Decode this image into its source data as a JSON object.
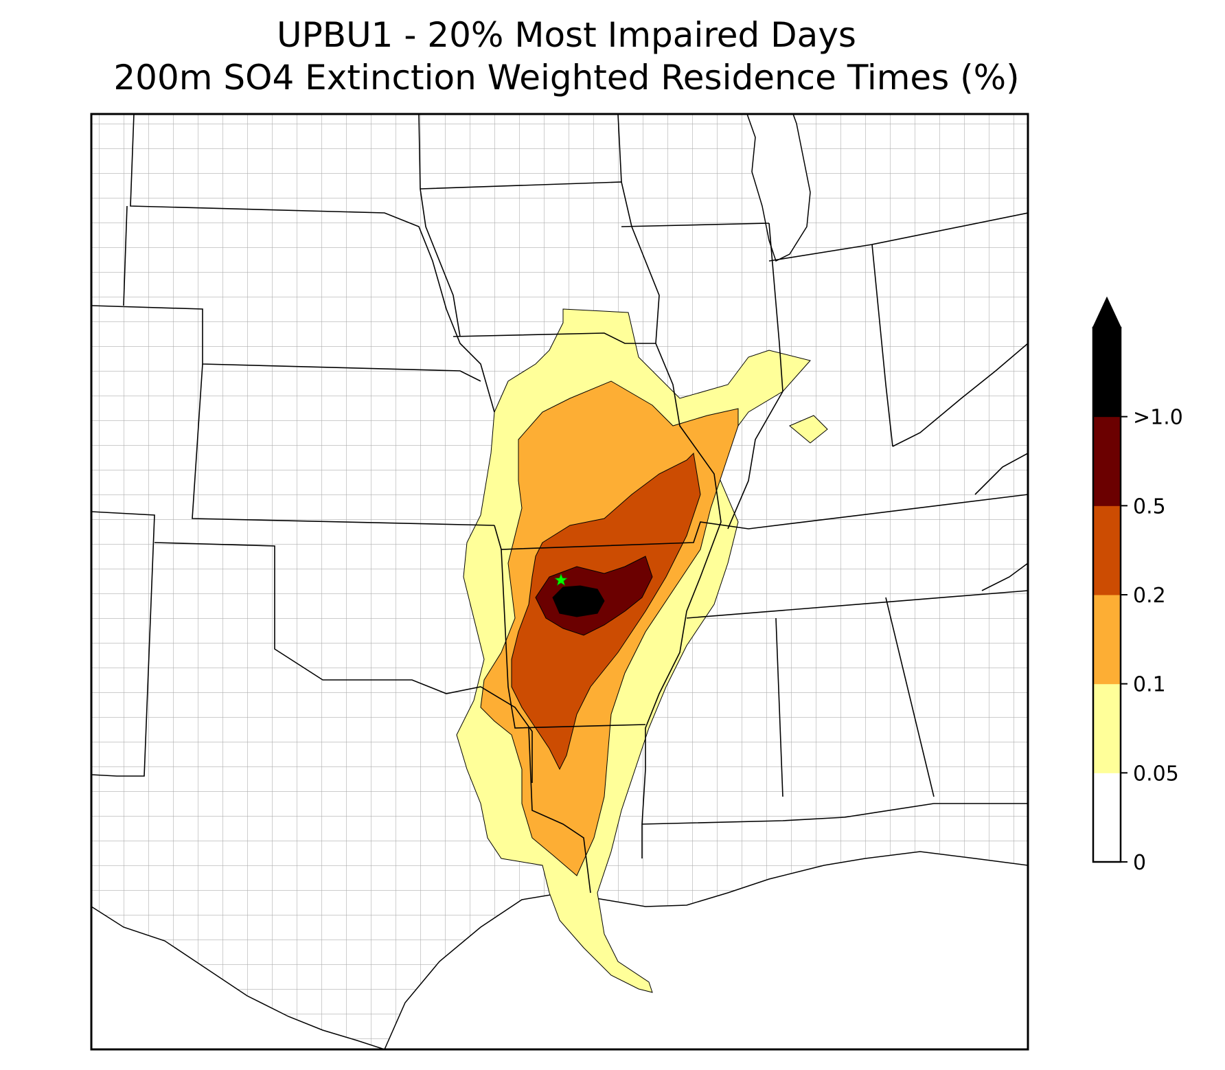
{
  "title": {
    "line1": "UPBU1 - 20% Most Impaired Days",
    "line2": "200m SO4 Extinction Weighted Residence Times (%)"
  },
  "colorbar": {
    "levels": [
      {
        "label": "0",
        "color": "#ffffff"
      },
      {
        "label": "0.05",
        "color": "#ffff99"
      },
      {
        "label": "0.1",
        "color": "#fdae34"
      },
      {
        "label": "0.2",
        "color": "#cc4c02"
      },
      {
        "label": "0.5",
        "color": "#6b0000"
      },
      {
        "label": ">1.0",
        "color": "#000000"
      }
    ],
    "extend": "max"
  },
  "site_marker": {
    "name": "UPBU1",
    "symbol": "star",
    "color": "#00ff00"
  },
  "colors": {
    "background": "#ffffff",
    "state_border": "#000000",
    "county_border": "#a0a0a0"
  }
}
